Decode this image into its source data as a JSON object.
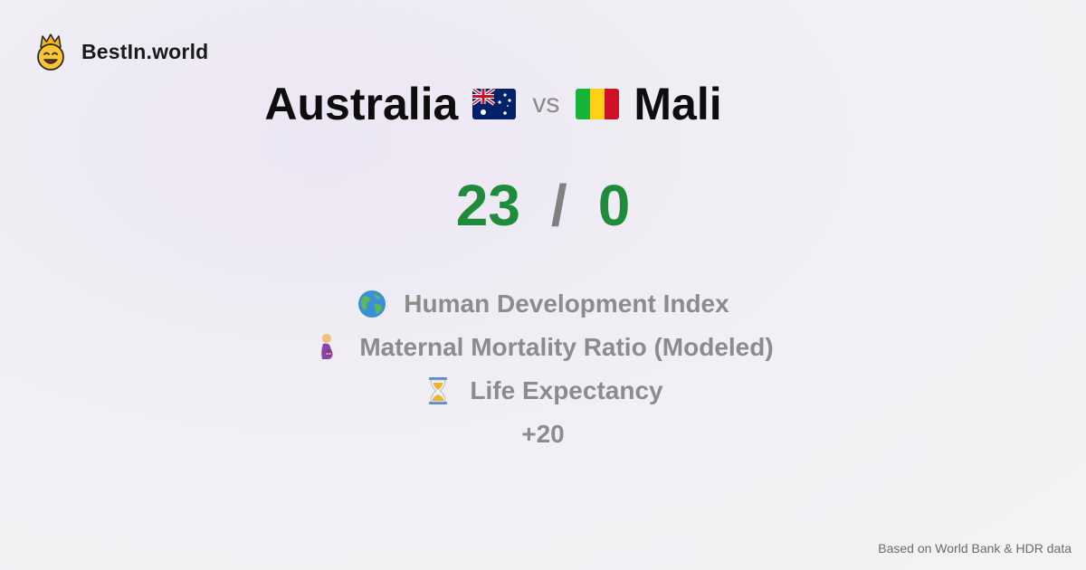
{
  "brand": {
    "name": "BestIn.world",
    "logo_icon": "crown-smiley-icon"
  },
  "comparison": {
    "country_a": {
      "name": "Australia",
      "flag_icon": "australia-flag-icon"
    },
    "vs_label": "vs",
    "country_b": {
      "name": "Mali",
      "flag_icon": "mali-flag-icon"
    }
  },
  "score": {
    "a": "23",
    "separator": "/",
    "b": "0",
    "color": "#1e8c3a"
  },
  "metrics": [
    {
      "icon": "globe-icon",
      "label": "Human Development Index"
    },
    {
      "icon": "pregnant-woman-icon",
      "label": "Maternal Mortality Ratio (Modeled)"
    },
    {
      "icon": "hourglass-icon",
      "label": "Life Expectancy"
    }
  ],
  "more_label": "+20",
  "footer": {
    "source": "Based on World Bank & HDR data"
  }
}
